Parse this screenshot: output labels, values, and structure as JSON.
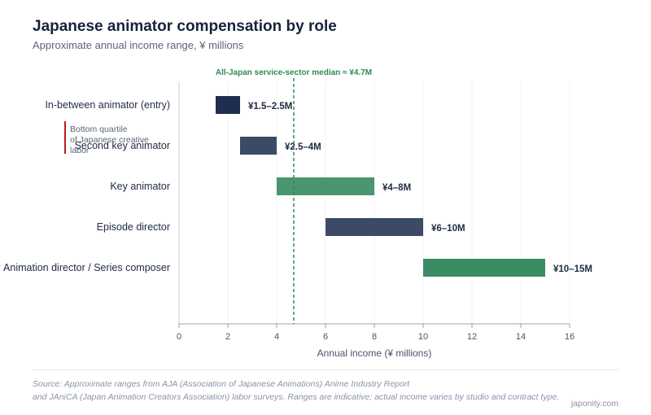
{
  "title": "Japanese animator compensation by role",
  "subtitle": "Approximate annual income range, ¥ millions",
  "chart_data": {
    "type": "bar",
    "orientation": "horizontal-range",
    "categories": [
      "In-between animator (entry)",
      "Second key animator",
      "Key animator",
      "Episode director",
      "Animation director / Series composer"
    ],
    "ranges": [
      [
        1.5,
        2.5
      ],
      [
        2.5,
        4
      ],
      [
        4,
        8
      ],
      [
        6,
        10
      ],
      [
        10,
        15
      ]
    ],
    "value_labels": [
      "¥1.5–2.5M",
      "¥2.5–4M",
      "¥4–8M",
      "¥6–10M",
      "¥10–15M"
    ],
    "bar_colors": [
      "#1f2d4e",
      "#3d4a66",
      "#4a9670",
      "#3d4a66",
      "#3a8d63"
    ],
    "xlabel": "Annual income (¥ millions)",
    "xlim": [
      0,
      16
    ],
    "xticks": [
      0,
      2,
      4,
      6,
      8,
      10,
      12,
      14,
      16
    ],
    "grid": true,
    "reference_line": {
      "value": 4.7,
      "label": "All-Japan service-sector median ≈ ¥4.7M",
      "color": "#2e8b57"
    },
    "annotation": {
      "text_line1": "Bottom quartile",
      "text_line2": "of Japanese creative",
      "text_line3": "labor",
      "color": "#b91c1c"
    }
  },
  "source_line1": "Source: Approximate ranges from AJA (Association of Japanese Animations) Anime Industry Report",
  "source_line2": "and JAniCA (Japan Animation Creators Association) labor surveys. Ranges are indicative; actual income varies by studio and contract type.",
  "brand": "japonity.com"
}
